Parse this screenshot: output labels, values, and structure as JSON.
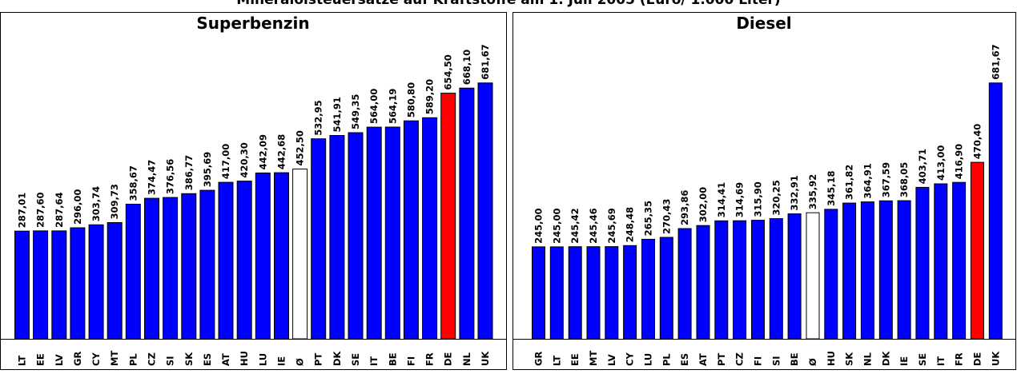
{
  "figure_title": "Mineralölsteuersätze auf Kraftstoffe am 1. Juli 2005 (Euro/ 1.000 Liter)",
  "colors": {
    "bar": "#0000ff",
    "average": "#ffffff",
    "germany": "#ff0000",
    "outline": "#000000"
  },
  "chart_data": [
    {
      "type": "bar",
      "title": "Superbenzin",
      "xlabel": "",
      "ylabel": "",
      "ylim": [
        0,
        800
      ],
      "grid": false,
      "categories": [
        "LT",
        "EE",
        "LV",
        "GR",
        "CY",
        "MT",
        "PL",
        "CZ",
        "SI",
        "SK",
        "ES",
        "AT",
        "HU",
        "LU",
        "IE",
        "Ø",
        "PT",
        "DK",
        "SE",
        "IT",
        "BE",
        "FI",
        "FR",
        "DE",
        "NL",
        "UK"
      ],
      "values": [
        287.01,
        287.6,
        287.64,
        296.0,
        303.74,
        309.73,
        358.67,
        374.47,
        376.56,
        386.77,
        395.69,
        417.0,
        420.3,
        442.09,
        442.68,
        452.5,
        532.95,
        541.91,
        549.35,
        564.0,
        564.19,
        580.8,
        589.2,
        654.5,
        668.1,
        681.67
      ],
      "value_labels": [
        "287,01",
        "287,60",
        "287,64",
        "296,00",
        "303,74",
        "309,73",
        "358,67",
        "374,47",
        "376,56",
        "386,77",
        "395,69",
        "417,00",
        "420,30",
        "442,09",
        "442,68",
        "452,50",
        "532,95",
        "541,91",
        "549,35",
        "564,00",
        "564,19",
        "580,80",
        "589,20",
        "654,50",
        "668,10",
        "681,67"
      ]
    },
    {
      "type": "bar",
      "title": "Diesel",
      "xlabel": "",
      "ylabel": "",
      "ylim": [
        0,
        800
      ],
      "grid": false,
      "categories": [
        "GR",
        "LT",
        "EE",
        "MT",
        "LV",
        "CY",
        "LU",
        "PL",
        "ES",
        "AT",
        "PT",
        "CZ",
        "FI",
        "SI",
        "BE",
        "Ø",
        "HU",
        "SK",
        "NL",
        "DK",
        "IE",
        "SE",
        "IT",
        "FR",
        "DE",
        "UK"
      ],
      "values": [
        245.0,
        245.0,
        245.42,
        245.46,
        245.69,
        248.48,
        265.35,
        270.43,
        293.86,
        302.0,
        314.41,
        314.69,
        315.9,
        320.25,
        332.91,
        335.92,
        345.18,
        361.82,
        364.91,
        367.59,
        368.05,
        403.71,
        413.0,
        416.9,
        470.4,
        681.67
      ],
      "value_labels": [
        "245,00",
        "245,00",
        "245,42",
        "245,46",
        "245,69",
        "248,48",
        "265,35",
        "270,43",
        "293,86",
        "302,00",
        "314,41",
        "314,69",
        "315,90",
        "320,25",
        "332,91",
        "335,92",
        "345,18",
        "361,82",
        "364,91",
        "367,59",
        "368,05",
        "403,71",
        "413,00",
        "416,90",
        "470,40",
        "681,67"
      ]
    }
  ]
}
